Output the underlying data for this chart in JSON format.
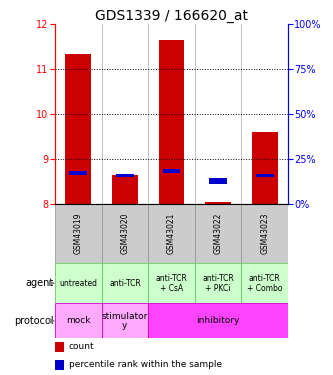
{
  "title": "GDS1339 / 166620_at",
  "samples": [
    "GSM43019",
    "GSM43020",
    "GSM43021",
    "GSM43022",
    "GSM43023"
  ],
  "bar_bottoms": [
    8.0,
    8.0,
    8.0,
    8.0,
    8.0
  ],
  "bar_tops": [
    11.35,
    8.65,
    11.65,
    8.05,
    9.6
  ],
  "blue_positions": [
    8.65,
    8.6,
    8.7,
    8.45,
    8.6
  ],
  "blue_sizes": [
    0.08,
    0.07,
    0.08,
    0.12,
    0.08
  ],
  "ylim": [
    8.0,
    12.0
  ],
  "yticks_left": [
    8,
    9,
    10,
    11,
    12
  ],
  "yticks_right": [
    0,
    25,
    50,
    75,
    100
  ],
  "agent_labels": [
    "untreated",
    "anti-TCR",
    "anti-TCR\n+ CsA",
    "anti-TCR\n+ PKCi",
    "anti-TCR\n+ Combo"
  ],
  "agent_bg": "#ccffcc",
  "agent_border": "#66cc66",
  "sample_bg": "#cccccc",
  "sample_border": "#999999",
  "bar_color": "#cc0000",
  "blue_color": "#0000cc",
  "background_color": "#ffffff",
  "chart_bg": "#ffffff",
  "title_fontsize": 10,
  "tick_fontsize": 7,
  "sample_fontsize": 5.5,
  "agent_fontsize": 5.5,
  "proto_fontsize": 6.5,
  "side_label_fontsize": 7
}
